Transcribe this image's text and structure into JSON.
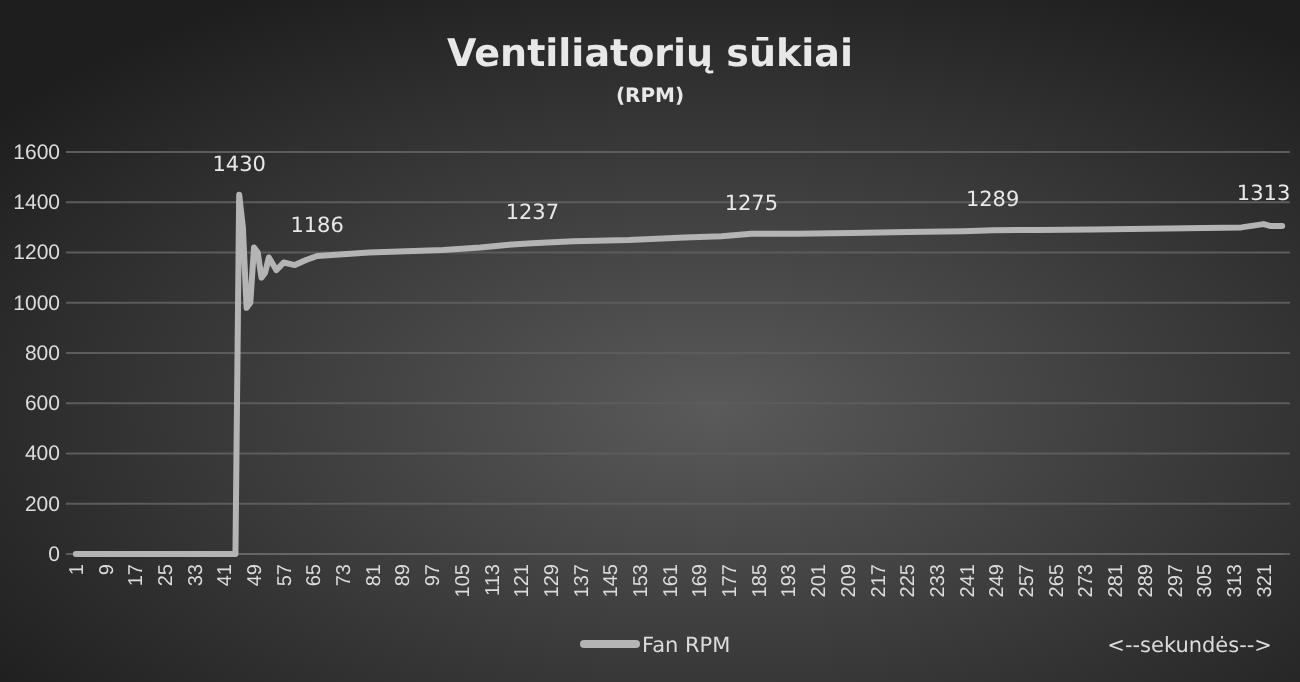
{
  "chart_data": {
    "type": "line",
    "title": "Ventiliatorių sūkiai",
    "subtitle": "(RPM)",
    "annotations": [
      "<--sekundės-->"
    ],
    "xlim": [
      0.5,
      326.5
    ],
    "xticks": [
      1,
      9,
      17,
      25,
      33,
      41,
      49,
      57,
      65,
      73,
      81,
      89,
      97,
      105,
      113,
      121,
      129,
      137,
      145,
      153,
      161,
      169,
      177,
      185,
      193,
      201,
      209,
      217,
      225,
      233,
      241,
      249,
      257,
      265,
      273,
      281,
      289,
      297,
      305,
      313,
      321
    ],
    "ylim": [
      0,
      1600
    ],
    "yticks": [
      0,
      200,
      400,
      600,
      800,
      1000,
      1200,
      1400,
      1600
    ],
    "grid": "y",
    "legend": "bottom",
    "series": [
      {
        "name": "Fan RPM",
        "color": "#b4b4b4",
        "x": [
          1,
          44,
          45,
          46,
          47,
          48,
          49,
          50,
          51,
          52,
          53,
          55,
          57,
          60,
          63,
          66,
          70,
          75,
          80,
          90,
          100,
          110,
          117,
          124,
          135,
          150,
          165,
          175,
          183,
          195,
          210,
          225,
          240,
          248,
          260,
          275,
          290,
          305,
          315,
          321,
          323,
          326
        ],
        "values": [
          0,
          0,
          1430,
          1300,
          980,
          1000,
          1220,
          1200,
          1100,
          1120,
          1180,
          1130,
          1160,
          1150,
          1170,
          1186,
          1190,
          1195,
          1200,
          1205,
          1210,
          1220,
          1230,
          1237,
          1245,
          1250,
          1260,
          1265,
          1275,
          1275,
          1278,
          1282,
          1285,
          1289,
          1290,
          1292,
          1295,
          1298,
          1300,
          1313,
          1305,
          1305
        ],
        "value_labels": [
          null,
          null,
          "1430",
          null,
          null,
          null,
          null,
          null,
          null,
          null,
          null,
          null,
          null,
          null,
          null,
          "1186",
          null,
          null,
          null,
          null,
          null,
          null,
          null,
          "1237",
          null,
          null,
          null,
          null,
          "1275",
          null,
          null,
          null,
          null,
          "1289",
          null,
          null,
          null,
          null,
          null,
          "1313",
          null,
          null
        ]
      }
    ]
  }
}
